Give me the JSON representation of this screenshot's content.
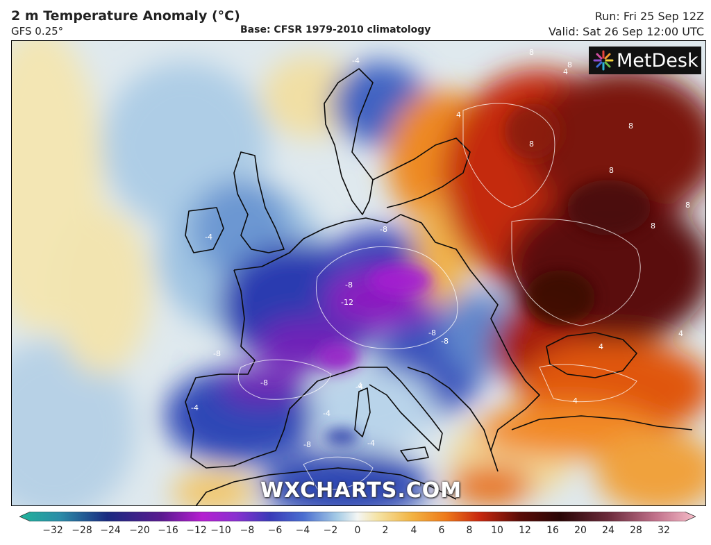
{
  "header": {
    "title": "2 m Temperature Anomaly (°C)",
    "model": "GFS 0.25°",
    "base": "Base: CFSR 1979-2010 climatology",
    "run": "Run: Fri 25 Sep 12Z",
    "valid": "Valid: Sat 26 Sep 12:00 UTC"
  },
  "map": {
    "brand": "MetDesk",
    "watermark": "WXCHARTS.COM",
    "contour_labels": [
      "8",
      "8",
      "4",
      "8",
      "8",
      "8",
      "8",
      "8",
      "4",
      "-4",
      "-4",
      "-8",
      "-8",
      "-12",
      "-8",
      "-8",
      "-8",
      "-8",
      "-4",
      "-4",
      "-4",
      "4",
      "4",
      "4",
      "4",
      "-8",
      "-4"
    ]
  },
  "legend": {
    "ticks": [
      "−32",
      "−28",
      "−24",
      "−20",
      "−16",
      "−12",
      "−10",
      "−8",
      "−6",
      "−4",
      "−2",
      "0",
      "2",
      "4",
      "6",
      "8",
      "10",
      "12",
      "16",
      "20",
      "24",
      "28",
      "32"
    ]
  },
  "colors": {
    "cold_extreme": "#1fb39a",
    "deep_blue": "#1b2f9e",
    "purple": "#7a1fb0",
    "light_blue": "#b9d6ea",
    "neutral": "#f2f4f2",
    "warm": "#f5c25a",
    "orange": "#ee7a1a",
    "red": "#b81e10",
    "dark_red": "#4a0c08",
    "pink_extreme": "#f4b4c4"
  }
}
